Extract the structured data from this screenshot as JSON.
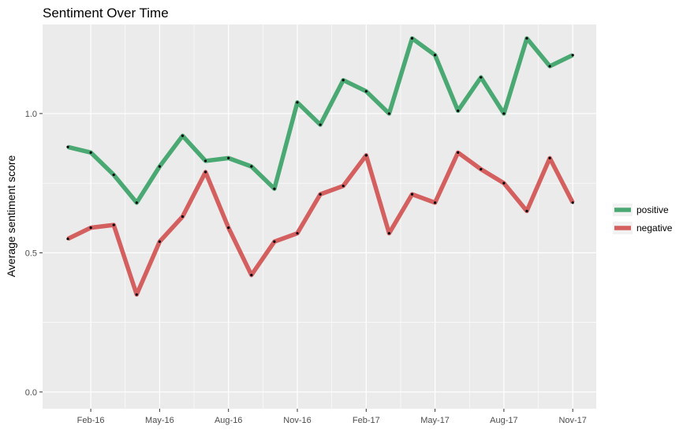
{
  "chart_data": {
    "type": "line",
    "title": "Sentiment Over Time",
    "xlabel": "",
    "ylabel": "Average sentiment score",
    "x": [
      "2016-01",
      "2016-02",
      "2016-03",
      "2016-04",
      "2016-05",
      "2016-06",
      "2016-07",
      "2016-08",
      "2016-09",
      "2016-10",
      "2016-11",
      "2016-12",
      "2017-01",
      "2017-02",
      "2017-03",
      "2017-04",
      "2017-05",
      "2017-06",
      "2017-07",
      "2017-08",
      "2017-09",
      "2017-10",
      "2017-11"
    ],
    "x_ticks": [
      "Feb-16",
      "May-16",
      "Aug-16",
      "Nov-16",
      "Feb-17",
      "May-17",
      "Aug-17",
      "Nov-17"
    ],
    "x_tick_dates": [
      "2016-02",
      "2016-05",
      "2016-08",
      "2016-11",
      "2017-02",
      "2017-05",
      "2017-08",
      "2017-11"
    ],
    "y_ticks": [
      "0.0",
      "0.5",
      "1.0"
    ],
    "y_tick_values": [
      0.0,
      0.5,
      1.0
    ],
    "ylim": [
      -0.06,
      1.32
    ],
    "grid": true,
    "legend_position": "right",
    "series": [
      {
        "name": "positive",
        "color": "#4aa872",
        "values": [
          0.88,
          0.86,
          0.78,
          0.68,
          0.81,
          0.92,
          0.83,
          0.84,
          0.81,
          0.73,
          1.04,
          0.96,
          1.12,
          1.08,
          1.0,
          1.27,
          1.21,
          1.01,
          1.13,
          1.0,
          1.27,
          1.17,
          1.21
        ]
      },
      {
        "name": "negative",
        "color": "#d45f5f",
        "values": [
          0.55,
          0.59,
          0.6,
          0.35,
          0.54,
          0.63,
          0.79,
          0.59,
          0.42,
          0.54,
          0.57,
          0.71,
          0.74,
          0.85,
          0.57,
          0.71,
          0.68,
          0.86,
          0.8,
          0.75,
          0.65,
          0.84,
          0.68
        ]
      }
    ]
  },
  "colors": {
    "panel_background": "#ebebeb",
    "grid_line": "#ffffff",
    "point": "#000000"
  }
}
